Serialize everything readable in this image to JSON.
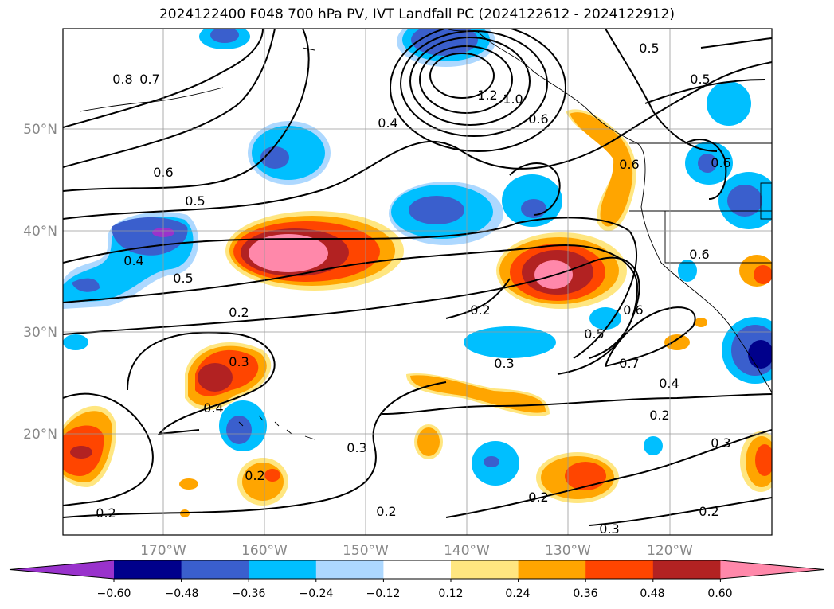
{
  "title": "2024122400 F048 700 hPa PV, IVT Landfall PC (2024122612 - 2024122912)",
  "lon_labels": [
    "170°W",
    "160°W",
    "150°W",
    "140°W",
    "130°W",
    "120°W"
  ],
  "lat_labels": [
    "50°N",
    "40°N",
    "30°N",
    "20°N"
  ],
  "colorbar": {
    "tick_labels": [
      "−0.60",
      "−0.48",
      "−0.36",
      "−0.24",
      "−0.12",
      "0.12",
      "0.24",
      "0.36",
      "0.48",
      "0.60"
    ],
    "colors": [
      "#9932cc",
      "#00008b",
      "#3a5fcd",
      "#00bfff",
      "#add8ff",
      "#ffffff",
      "#ffe680",
      "#ffa500",
      "#ff4500",
      "#b22222",
      "#ff88aa"
    ]
  },
  "contour_labels": [
    {
      "text": "0.8"
    },
    {
      "text": "0.7"
    },
    {
      "text": "0.6"
    },
    {
      "text": "0.5"
    },
    {
      "text": "0.4"
    },
    {
      "text": "0.5"
    },
    {
      "text": "0.4"
    },
    {
      "text": "1.2"
    },
    {
      "text": "1.0"
    },
    {
      "text": "0.6"
    },
    {
      "text": "0.5"
    },
    {
      "text": "0.5"
    },
    {
      "text": "0.6"
    },
    {
      "text": "0.6"
    },
    {
      "text": "0.6"
    },
    {
      "text": "0.2"
    },
    {
      "text": "0.2"
    },
    {
      "text": "0.5"
    },
    {
      "text": "0.6"
    },
    {
      "text": "0.3"
    },
    {
      "text": "0.7"
    },
    {
      "text": "0.4"
    },
    {
      "text": "0.3"
    },
    {
      "text": "0.4"
    },
    {
      "text": "0.2"
    },
    {
      "text": "0.2"
    },
    {
      "text": "0.3"
    },
    {
      "text": "0.2"
    },
    {
      "text": "0.3"
    },
    {
      "text": "0.2"
    },
    {
      "text": "0.2"
    },
    {
      "text": "0.2"
    },
    {
      "text": "0.3"
    }
  ]
}
